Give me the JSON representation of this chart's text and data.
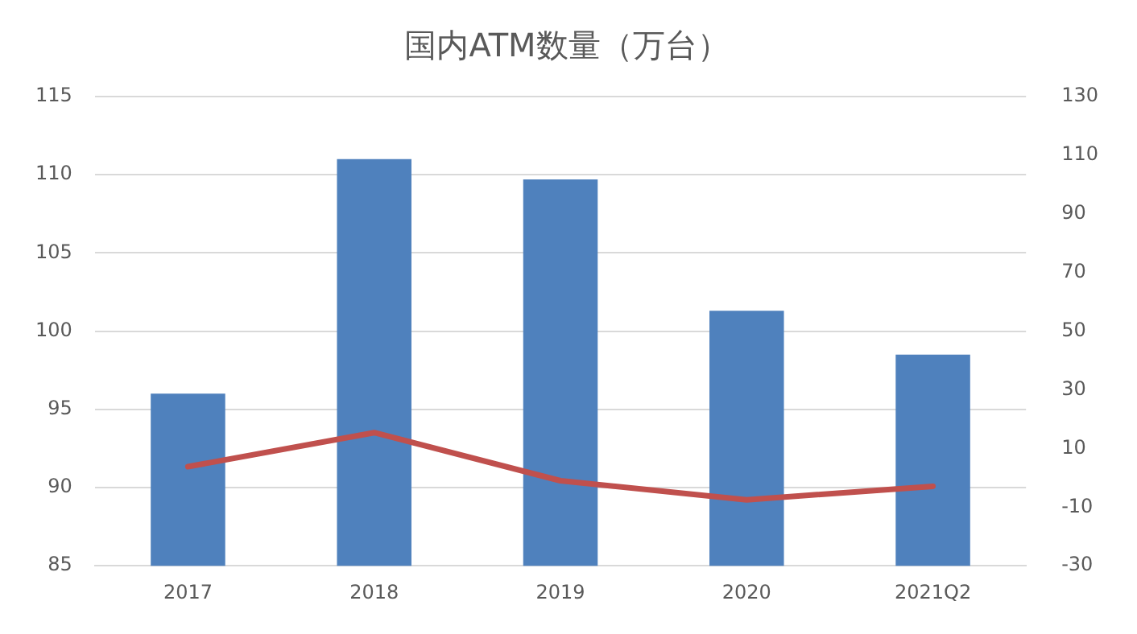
{
  "chart_data": {
    "type": "bar",
    "title": "国内ATM数量（万台）",
    "categories": [
      "2017",
      "2018",
      "2019",
      "2020",
      "2021Q2"
    ],
    "series": [
      {
        "color": "#4f81bd",
        "values": [
          96.0,
          111.0,
          109.7,
          101.3,
          98.5
        ]
      },
      {
        "type": "line",
        "axis": "y2",
        "color": "#c0504d",
        "values": [
          3.8,
          15.4,
          -1.0,
          -7.5,
          -2.9
        ]
      }
    ],
    "ylim": [
      85,
      115
    ],
    "yticks": [
      85,
      90,
      95,
      100,
      105,
      110,
      115
    ],
    "y2lim": [
      -30,
      130
    ],
    "y2ticks": [
      -30,
      -10,
      10,
      30,
      50,
      70,
      90,
      110,
      130
    ],
    "grid": "y",
    "legend": false
  }
}
